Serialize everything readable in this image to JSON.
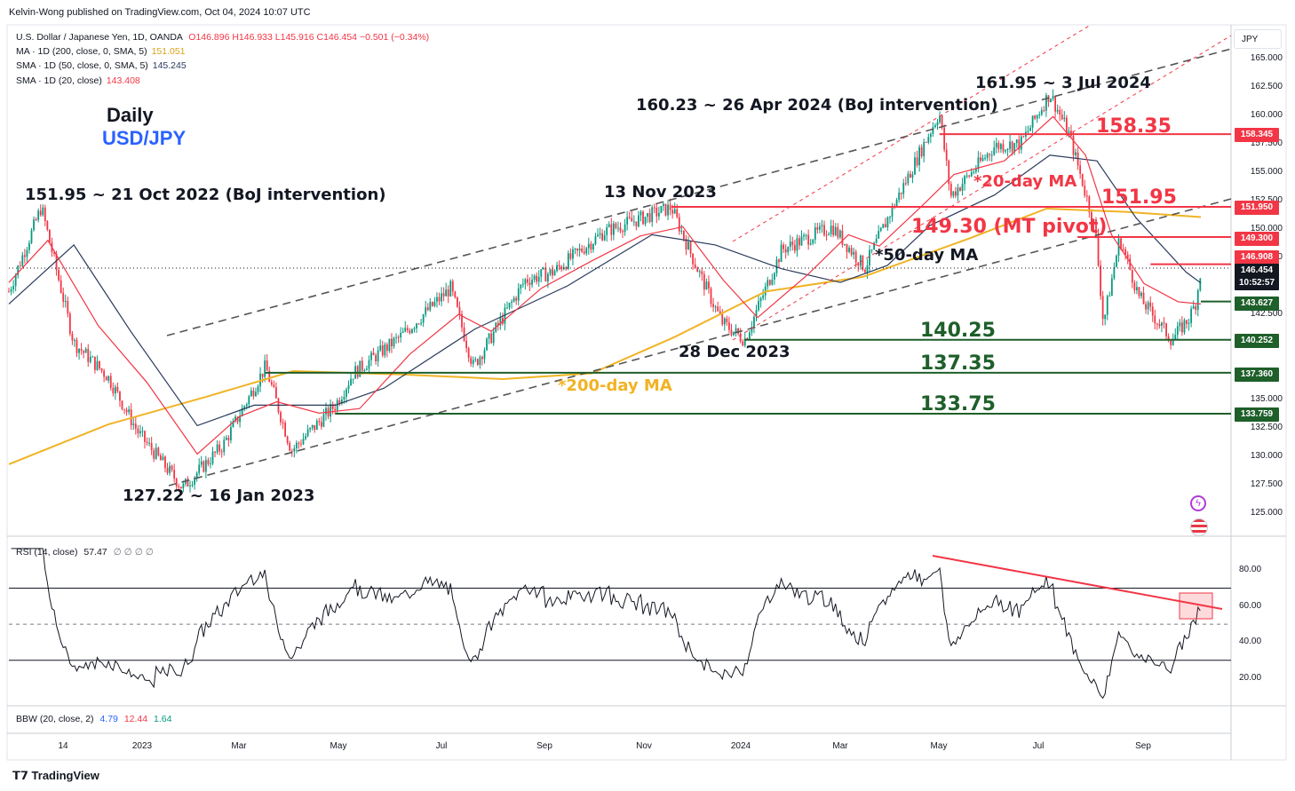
{
  "publisher": "Kelvin-Wong published on TradingView.com, Oct 04, 2024 10:07 UTC",
  "legend": {
    "symbol": "U.S. Dollar / Japanese Yen, 1D, OANDA",
    "ohlc": "O146.896 H146.933 L145.916 C146.454 −0.501 (−0.34%)",
    "ma200_label": "MA · 1D (200, close, 0, SMA, 5)",
    "ma200_value": "151.051",
    "sma50_label": "SMA · 1D (50, close, 0, SMA, 5)",
    "sma50_value": "145.245",
    "sma20_label": "SMA · 1D (20, close)",
    "sma20_value": "143.408"
  },
  "title": {
    "timeframe": "Daily",
    "pair": "USD/JPY"
  },
  "annotations": {
    "high_oct22": "151.95 ~ 21 Oct 2022 (BoJ intervention)",
    "low_jan23": "127.22 ~ 16 Jan 2023",
    "nov23": "13 Nov 2023",
    "dec23": "28 Dec 2023",
    "apr24": "160.23 ~ 26 Apr 2024 (BoJ intervention)",
    "jul24": "161.95 ~ 3 Jul 2024",
    "ma20": "*20-day MA",
    "ma50": "*50-day MA",
    "ma200": "*200-day MA",
    "lvl_15835": "158.35",
    "lvl_15195": "151.95",
    "lvl_14930": "149.30 (MT pivot)",
    "lvl_14025": "140.25",
    "lvl_13735": "137.35",
    "lvl_13375": "133.75"
  },
  "price_axis": {
    "currency": "JPY",
    "ticks": [
      "165.000",
      "162.500",
      "160.000",
      "157.500",
      "155.000",
      "152.500",
      "150.000",
      "147.500",
      "142.500",
      "135.000",
      "132.500",
      "130.000",
      "127.500",
      "125.000"
    ],
    "badges": [
      {
        "text": "158.345",
        "color": "#f23645"
      },
      {
        "text": "151.950",
        "color": "#f23645"
      },
      {
        "text": "149.300",
        "color": "#f23645"
      },
      {
        "text": "146.908",
        "color": "#f23645"
      },
      {
        "text": "146.454",
        "color": "#131722"
      },
      {
        "text": "10:52:57",
        "color": "#131722"
      },
      {
        "text": "143.627",
        "color": "#1e5f2a"
      },
      {
        "text": "140.252",
        "color": "#1e5f2a"
      },
      {
        "text": "137.360",
        "color": "#1e5f2a"
      },
      {
        "text": "133.759",
        "color": "#1e5f2a"
      }
    ]
  },
  "time_axis": [
    "14",
    "2023",
    "Mar",
    "May",
    "Jul",
    "Sep",
    "Nov",
    "2024",
    "Mar",
    "May",
    "Jul",
    "Sep"
  ],
  "rsi": {
    "label": "RSI (14, close)",
    "value": "57.47",
    "extras": "∅ ∅ ∅ ∅",
    "ticks": [
      "80.00",
      "60.00",
      "40.00",
      "20.00"
    ]
  },
  "bbw": {
    "label": "BBW (20, close, 2)",
    "v1": "4.79",
    "v2": "12.44",
    "v3": "1.64"
  },
  "footer": {
    "brand": "TradingView"
  },
  "colors": {
    "up": "#089981",
    "down": "#f23645",
    "ma20": "#f23645",
    "ma50": "#2a3a5c",
    "ma200": "#f0b323",
    "resistance": "#f23645",
    "support": "#1e5f2a",
    "pair": "#2962ff"
  },
  "chart_data": {
    "type": "line",
    "title": "U.S. Dollar / Japanese Yen, 1D, OANDA",
    "xlabel": "",
    "ylabel": "JPY",
    "ylim": [
      123.5,
      166.5
    ],
    "series": [
      {
        "name": "USD/JPY close (approx.)",
        "x": [
          "2022-10-21",
          "2023-01-16",
          "2023-03-08",
          "2023-05-01",
          "2023-07-01",
          "2023-09-01",
          "2023-11-13",
          "2023-12-28",
          "2024-03-01",
          "2024-04-26",
          "2024-07-03",
          "2024-08-05",
          "2024-09-16",
          "2024-10-04"
        ],
        "values": [
          151.95,
          127.22,
          137.9,
          137.3,
          144.5,
          146.2,
          151.9,
          140.25,
          150.0,
          160.23,
          161.95,
          141.7,
          140.25,
          146.45
        ]
      },
      {
        "name": "MA 200",
        "x": [
          "2022-10-21",
          "2023-03-01",
          "2023-09-01",
          "2024-01-01",
          "2024-07-01",
          "2024-10-04"
        ],
        "values": [
          130.0,
          137.5,
          137.0,
          143.5,
          151.8,
          151.05
        ]
      },
      {
        "name": "SMA 50",
        "x": [
          "2022-10-21",
          "2023-02-01",
          "2023-07-01",
          "2023-11-01",
          "2024-03-01",
          "2024-07-03",
          "2024-10-04"
        ],
        "values": [
          142.0,
          132.0,
          138.0,
          149.5,
          146.0,
          156.5,
          145.25
        ]
      },
      {
        "name": "SMA 20",
        "x": [
          "2024-07-03",
          "2024-09-01",
          "2024-10-04"
        ],
        "values": [
          160.0,
          144.5,
          143.41
        ]
      }
    ],
    "horizontal_levels": [
      158.35,
      151.95,
      149.3,
      146.908,
      143.627,
      140.25,
      137.35,
      133.75
    ],
    "rsi": {
      "period": 14,
      "last": 57.47,
      "overbought": 70,
      "oversold": 30,
      "ylim": [
        0,
        100
      ]
    }
  }
}
